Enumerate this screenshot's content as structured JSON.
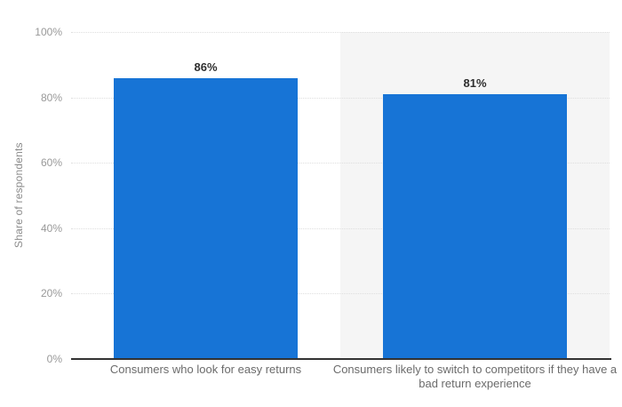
{
  "chart_data": {
    "type": "bar",
    "title": "",
    "xlabel": "",
    "ylabel": "Share of respondents",
    "categories": [
      "Consumers who look for easy returns",
      "Consumers likely to switch to competitors if they have a bad return experience"
    ],
    "category_label_lines": [
      [
        "Consumers who look for easy returns"
      ],
      [
        "Consumers likely to switch to competitors if they have a",
        "bad return experience"
      ]
    ],
    "values": [
      86,
      81
    ],
    "value_labels": [
      "86%",
      "81%"
    ],
    "ylim": [
      0,
      100
    ],
    "y_ticks": [
      0,
      20,
      40,
      60,
      80,
      100
    ],
    "y_tick_labels": [
      "0%",
      "20%",
      "40%",
      "60%",
      "80%",
      "100%"
    ],
    "grid": "horizontal-dotted",
    "legend": "none",
    "highlighted_category_index": 1,
    "colors": {
      "bar": "#1774d6",
      "highlight_band": "#f5f5f5",
      "grid": "#dedede",
      "axis_line": "#333333",
      "tick_label": "#999999",
      "category_label": "#6b6b6b",
      "value_label": "#2e2e2e",
      "y_axis_title": "#8c8c8c",
      "background": "#ffffff"
    }
  }
}
